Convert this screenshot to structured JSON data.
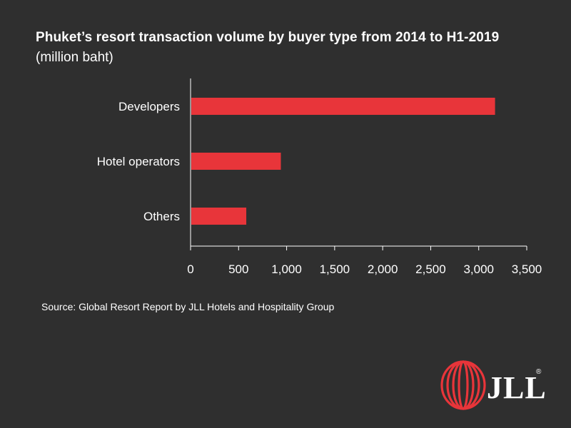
{
  "header": {
    "title": "Phuket’s resort transaction volume by buyer type from 2014 to H1-2019",
    "subtitle": "(million baht)"
  },
  "chart_data": {
    "type": "bar",
    "orientation": "horizontal",
    "title": "Phuket’s resort transaction volume by buyer type from 2014 to H1-2019",
    "subtitle": "(million baht)",
    "categories": [
      "Developers",
      "Hotel operators",
      "Others"
    ],
    "values": [
      3170,
      940,
      580
    ],
    "xlim": [
      0,
      3500
    ],
    "ticks": [
      0,
      500,
      1000,
      1500,
      2000,
      2500,
      3000,
      3500
    ],
    "tick_labels": [
      "0",
      "500",
      "1,000",
      "1,500",
      "2,000",
      "2,500",
      "3,000",
      "3,500"
    ],
    "bar_color": "#e8353a",
    "grid": false
  },
  "footer": {
    "source": "Source: Global Resort Report by JLL Hotels and Hospitality Group",
    "logo_text": "JLL",
    "logo_mark": "®"
  },
  "colors": {
    "background": "#2f2f2f",
    "accent": "#e8353a",
    "text": "#ffffff"
  }
}
